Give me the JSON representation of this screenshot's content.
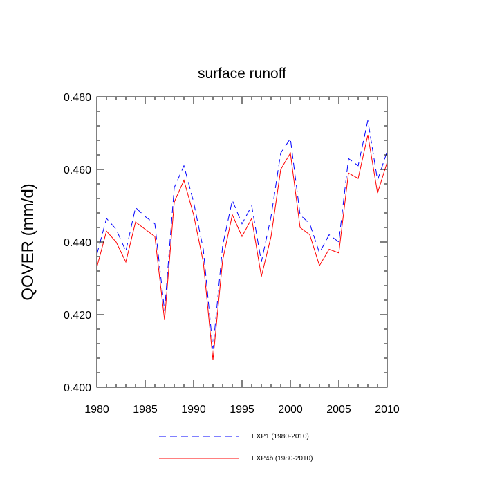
{
  "chart_data": {
    "type": "line",
    "title": "surface runoff",
    "xlabel": "",
    "ylabel": "QOVER  (mm/d)",
    "xlim": [
      1980,
      2010
    ],
    "ylim": [
      0.4,
      0.48
    ],
    "xticks": [
      1980,
      1985,
      1990,
      1995,
      2000,
      2005,
      2010
    ],
    "xtick_labels": [
      "1980",
      "1985",
      "1990",
      "1995",
      "2000",
      "2005",
      "2010"
    ],
    "yticks": [
      0.4,
      0.42,
      0.44,
      0.46,
      0.48
    ],
    "ytick_labels": [
      "0.400",
      "0.420",
      "0.440",
      "0.460",
      "0.480"
    ],
    "x_minor_step": 1,
    "y_minor_step": 0.004,
    "grid": false,
    "legend_position": "bottom-center",
    "x": [
      1980,
      1981,
      1982,
      1983,
      1984,
      1985,
      1986,
      1987,
      1988,
      1989,
      1990,
      1991,
      1992,
      1993,
      1994,
      1995,
      1996,
      1997,
      1998,
      1999,
      2000,
      2001,
      2002,
      2003,
      2004,
      2005,
      2006,
      2007,
      2008,
      2009,
      2010
    ],
    "series": [
      {
        "name": "EXP1 (1980-2010)",
        "color": "#0000ff",
        "style": "dashed",
        "values": [
          0.4365,
          0.4465,
          0.4435,
          0.4375,
          0.4495,
          0.447,
          0.445,
          0.421,
          0.455,
          0.461,
          0.451,
          0.438,
          0.4105,
          0.439,
          0.4515,
          0.445,
          0.45,
          0.4345,
          0.447,
          0.4645,
          0.4685,
          0.4475,
          0.445,
          0.437,
          0.442,
          0.44,
          0.463,
          0.461,
          0.4735,
          0.457,
          0.465
        ]
      },
      {
        "name": "EXP4b (1980-2010)",
        "color": "#ff0000",
        "style": "solid",
        "values": [
          0.433,
          0.443,
          0.44,
          0.4345,
          0.4455,
          0.4435,
          0.4415,
          0.4185,
          0.451,
          0.457,
          0.4475,
          0.4345,
          0.4075,
          0.435,
          0.4475,
          0.4415,
          0.4465,
          0.4305,
          0.4415,
          0.46,
          0.4645,
          0.444,
          0.442,
          0.4335,
          0.438,
          0.437,
          0.459,
          0.4575,
          0.4695,
          0.4535,
          0.462
        ]
      }
    ]
  }
}
